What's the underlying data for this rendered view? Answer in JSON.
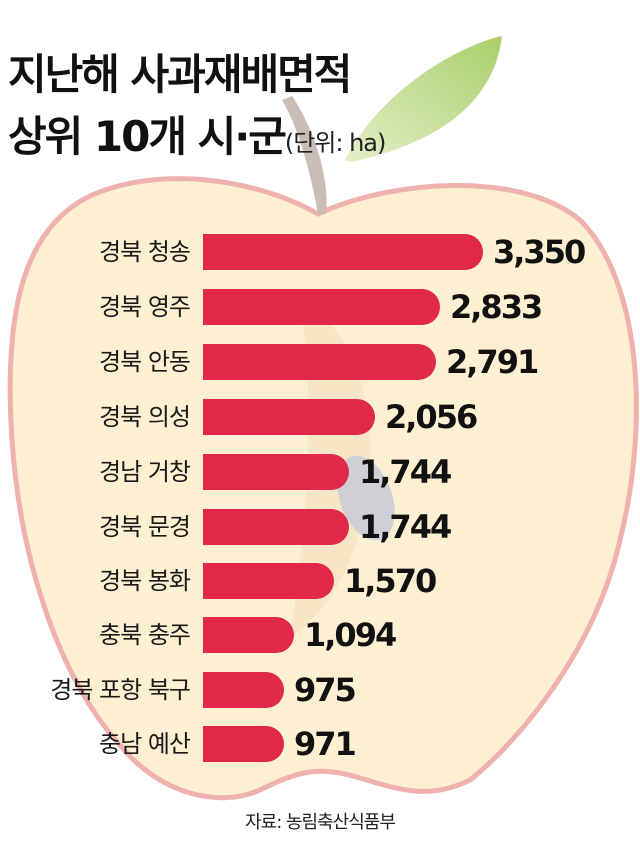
{
  "title": {
    "line1": "지난해 사과재배면적",
    "line2": "상위 10개 시·군",
    "unit": "(단위: ha)"
  },
  "source": "자료: 농림축산식품부",
  "colors": {
    "bar": "#e0284a",
    "apple_fill": "#fdefd2",
    "apple_outline": "#efb1ad",
    "leaf": "#b6d67c",
    "stem": "#c9bdb6"
  },
  "rows": [
    {
      "label": "경북 청송",
      "value_text": "3,350"
    },
    {
      "label": "경북 영주",
      "value_text": "2,833"
    },
    {
      "label": "경북 안동",
      "value_text": "2,791"
    },
    {
      "label": "경북 의성",
      "value_text": "2,056"
    },
    {
      "label": "경남 거창",
      "value_text": "1,744"
    },
    {
      "label": "경북 문경",
      "value_text": "1,744"
    },
    {
      "label": "경북 봉화",
      "value_text": "1,570"
    },
    {
      "label": "충북 충주",
      "value_text": "1,094"
    },
    {
      "label": "경북 포항 북구",
      "value_text": "975"
    },
    {
      "label": "충남 예산",
      "value_text": "971"
    }
  ],
  "chart_data": {
    "type": "bar",
    "orientation": "horizontal",
    "title": "지난해 사과재배면적 상위 10개 시·군",
    "unit": "ha",
    "categories": [
      "경북 청송",
      "경북 영주",
      "경북 안동",
      "경북 의성",
      "경남 거창",
      "경북 문경",
      "경북 봉화",
      "충북 충주",
      "경북 포항 북구",
      "충남 예산"
    ],
    "values": [
      3350,
      2833,
      2791,
      2056,
      1744,
      1744,
      1570,
      1094,
      975,
      971
    ],
    "xlabel": "",
    "ylabel": "",
    "grid": false,
    "legend": null,
    "source": "자료: 농림축산식품부"
  }
}
